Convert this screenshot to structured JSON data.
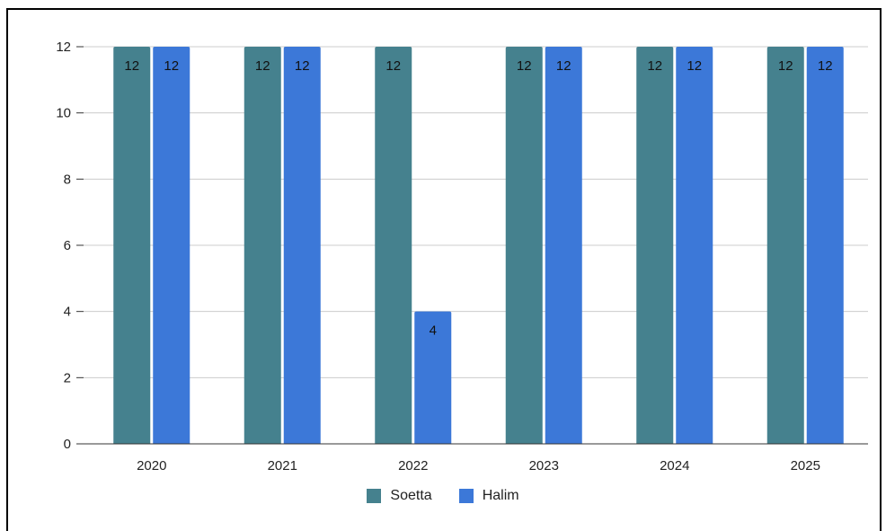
{
  "chart_data": {
    "type": "bar",
    "categories": [
      "2020",
      "2021",
      "2022",
      "2023",
      "2024",
      "2025"
    ],
    "series": [
      {
        "name": "Soetta",
        "color": "#45818e",
        "values": [
          12,
          12,
          12,
          12,
          12,
          12
        ]
      },
      {
        "name": "Halim",
        "color": "#3c78d8",
        "values": [
          12,
          12,
          4,
          12,
          12,
          12
        ]
      }
    ],
    "ylim": [
      0,
      12
    ],
    "yticks": [
      "0",
      "2",
      "4",
      "6",
      "8",
      "10",
      "12"
    ],
    "grid": true,
    "legend_position": "bottom",
    "data_labels": {
      "Soetta": [
        "12",
        "12",
        "12",
        "12",
        "12",
        "12"
      ],
      "Halim": [
        "12",
        "12",
        "4",
        "12",
        "12",
        "12"
      ]
    }
  }
}
